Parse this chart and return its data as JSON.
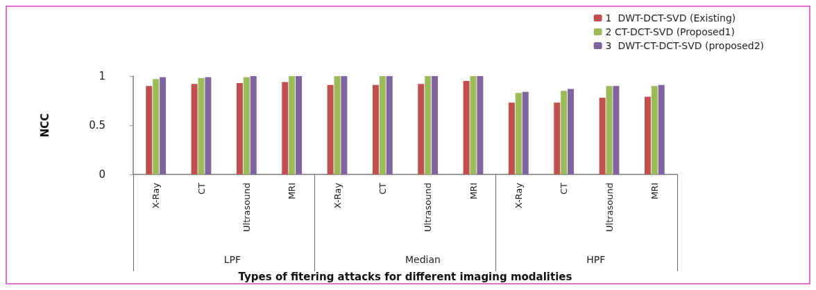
{
  "chart_data": {
    "type": "bar",
    "xlabel": "Types of fitering attacks for different imaging modalities",
    "ylabel": "NCC",
    "categories": [
      "X-Ray",
      "CT",
      "Ultrasound",
      "MRI",
      "X-Ray",
      "CT",
      "Ultrasound",
      "MRI",
      "X-Ray",
      "CT",
      "Ultrasound",
      "MRI"
    ],
    "annotations": [
      "LPF",
      "Median",
      "HPF"
    ],
    "series": [
      {
        "name": "1  DWT-DCT-SVD (Existing)",
        "color": "#c0504d",
        "values": [
          0.9,
          0.92,
          0.93,
          0.94,
          0.91,
          0.91,
          0.92,
          0.95,
          0.73,
          0.73,
          0.78,
          0.79
        ]
      },
      {
        "name": "2 CT-DCT-SVD (Proposed1)",
        "color": "#9bbb59",
        "values": [
          0.97,
          0.98,
          0.99,
          1.0,
          1.0,
          1.0,
          1.0,
          1.0,
          0.83,
          0.85,
          0.9,
          0.9
        ]
      },
      {
        "name": "3  DWT-CT-DCT-SVD (proposed2)",
        "color": "#8064a2",
        "values": [
          0.99,
          0.99,
          1.0,
          1.0,
          1.0,
          1.0,
          1.0,
          1.0,
          0.84,
          0.87,
          0.9,
          0.91
        ]
      }
    ],
    "ylim": [
      0,
      1
    ],
    "yticks": [
      0,
      0.5,
      1
    ],
    "grid": false,
    "legend": "top right"
  }
}
